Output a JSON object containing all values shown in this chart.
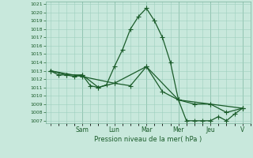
{
  "xlabel": "Pression niveau de la mer( hPa )",
  "bg_color": "#c8e8dc",
  "grid_color": "#9ecfbe",
  "line_color": "#1a5c2a",
  "ylim": [
    1007,
    1021
  ],
  "yticks": [
    1007,
    1008,
    1009,
    1010,
    1011,
    1012,
    1013,
    1014,
    1015,
    1016,
    1017,
    1018,
    1019,
    1020,
    1021
  ],
  "day_labels": [
    "",
    "Sam",
    "Lun",
    "Mar",
    "Mer",
    "Jeu",
    "V"
  ],
  "day_positions": [
    0,
    2,
    4,
    6,
    8,
    10,
    12
  ],
  "series1": {
    "x": [
      0,
      0.5,
      1,
      1.5,
      2,
      2.5,
      3,
      3.5,
      4,
      4.5,
      5,
      5.5,
      6,
      6.5,
      7,
      7.5,
      8,
      8.5,
      9,
      9.5,
      10,
      10.5,
      11,
      11.5,
      12
    ],
    "y": [
      1013,
      1012.5,
      1012.5,
      1012.3,
      1012.5,
      1011.2,
      1011.0,
      1011.3,
      1013.5,
      1015.5,
      1018.0,
      1019.5,
      1020.5,
      1019.0,
      1017.0,
      1014.0,
      1009.5,
      1007.0,
      1007.0,
      1007.0,
      1007.0,
      1007.5,
      1007.0,
      1007.8,
      1008.5
    ]
  },
  "series2": {
    "x": [
      0,
      1,
      2,
      3,
      4,
      5,
      6,
      7,
      8,
      9,
      10,
      11,
      12
    ],
    "y": [
      1013.0,
      1012.5,
      1012.5,
      1011.0,
      1011.5,
      1011.2,
      1013.5,
      1010.5,
      1009.5,
      1009.0,
      1009.0,
      1008.0,
      1008.5
    ]
  },
  "series3": {
    "x": [
      0,
      2,
      4,
      6,
      8,
      10,
      12
    ],
    "y": [
      1013.0,
      1012.3,
      1011.5,
      1013.5,
      1009.5,
      1009.0,
      1008.5
    ]
  }
}
